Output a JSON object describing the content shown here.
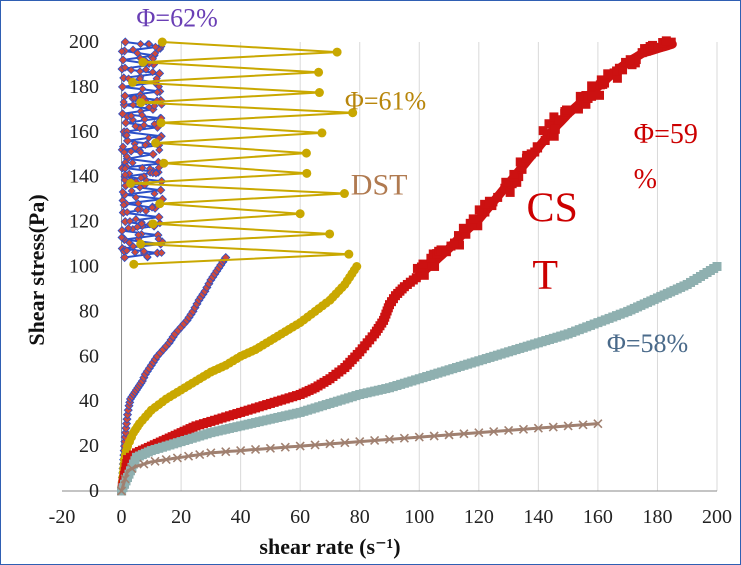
{
  "chart_data": {
    "type": "scatter",
    "xlabel": "shear rate (s⁻¹)",
    "ylabel": "Shear stress(Pa)",
    "xlim": [
      -20,
      200
    ],
    "ylim": [
      0,
      200
    ],
    "x_ticks": [
      -20,
      0,
      20,
      40,
      60,
      80,
      100,
      120,
      140,
      160,
      180,
      200
    ],
    "y_ticks": [
      0,
      20,
      40,
      60,
      80,
      100,
      120,
      140,
      160,
      180,
      200
    ],
    "grid": "vertical",
    "legend": "none",
    "annotations": [
      {
        "text": "Φ=62%",
        "color": "#6a3fb5",
        "x": 5,
        "y": 207
      },
      {
        "text": "Φ=61%",
        "color": "#b8860b",
        "x": 75,
        "y": 170
      },
      {
        "text": "DST",
        "color": "#b07a50",
        "x": 77,
        "y": 132
      },
      {
        "text": "Φ=59",
        "color": "#cc0000",
        "x": 172,
        "y": 155
      },
      {
        "text": "%",
        "color": "#cc0000",
        "x": 172,
        "y": 135
      },
      {
        "text": "CS",
        "color": "#cc0000",
        "x": 136,
        "y": 120
      },
      {
        "text": "T",
        "color": "#cc0000",
        "x": 138,
        "y": 90
      },
      {
        "text": "Φ=58%",
        "color": "#4a6a8a",
        "x": 163,
        "y": 62
      }
    ],
    "series": [
      {
        "color": "#2b50c8",
        "marker_color": "#d04a3a",
        "marker": "diamond",
        "x": [
          0,
          0.5,
          1,
          1.5,
          2,
          2.5,
          3,
          4,
          5,
          6,
          7,
          8,
          10,
          12,
          14,
          16,
          18,
          20,
          22,
          24,
          26,
          28,
          30,
          32,
          34,
          35
        ],
        "y": [
          0,
          10,
          20,
          28,
          34,
          38,
          41,
          43,
          45,
          47,
          49,
          52,
          56,
          60,
          63,
          66,
          70,
          73,
          76,
          80,
          85,
          89,
          94,
          98,
          102,
          104
        ],
        "lower_zigzag": {
          "type": "oscillating",
          "y_start": 104,
          "y_end": 200,
          "steps": 48,
          "x_min": 0,
          "x_max": 14
        }
      },
      {
        "color": "#c9a800",
        "marker": "circle",
        "x": [
          0,
          1,
          2,
          4,
          6,
          8,
          10,
          15,
          20,
          25,
          30,
          35,
          40,
          45,
          50,
          55,
          60,
          65,
          70,
          75,
          79
        ],
        "y": [
          0,
          14,
          20,
          26,
          30,
          33,
          36,
          41,
          45,
          49,
          53,
          56,
          60,
          63,
          67,
          71,
          75,
          80,
          85,
          92,
          100
        ],
        "lower_zigzag": {
          "type": "oscillating",
          "y_start": 101,
          "y_end": 200,
          "steps": 22,
          "x_min": 3,
          "x_max": 78
        }
      },
      {
        "color": "#cc1111",
        "marker": "square",
        "x": [
          0,
          2,
          5,
          10,
          15,
          20,
          25,
          30,
          35,
          40,
          45,
          50,
          55,
          60,
          65,
          70,
          75,
          80,
          85,
          88,
          90,
          92,
          95,
          100,
          105,
          110,
          115,
          120,
          125,
          130,
          135,
          140,
          145,
          150,
          155,
          160,
          165,
          170,
          175,
          180,
          185
        ],
        "y": [
          0,
          14,
          17,
          20,
          23,
          26,
          29,
          31,
          33,
          35,
          37,
          39,
          41,
          43,
          46,
          50,
          55,
          62,
          70,
          76,
          83,
          87,
          91,
          96,
          102,
          108,
          115,
          121,
          129,
          137,
          145,
          153,
          161,
          168,
          174,
          180,
          186,
          191,
          195,
          197,
          199
        ]
      },
      {
        "color": "#8fb0b0",
        "marker": "square",
        "x": [
          0,
          5,
          10,
          20,
          30,
          40,
          50,
          60,
          70,
          80,
          90,
          100,
          110,
          120,
          130,
          140,
          150,
          160,
          170,
          180,
          190,
          200
        ],
        "y": [
          0,
          15,
          18,
          22,
          26,
          29,
          32,
          35,
          39,
          43,
          46,
          50,
          54,
          58,
          62,
          66,
          70,
          75,
          80,
          86,
          92,
          100
        ]
      },
      {
        "color": "#a08070",
        "marker": "x",
        "x": [
          0,
          2,
          5,
          10,
          15,
          20,
          25,
          30,
          40,
          50,
          60,
          70,
          80,
          90,
          100,
          110,
          120,
          130,
          140,
          150,
          160
        ],
        "y": [
          0,
          9,
          11,
          13,
          14,
          15,
          16,
          17,
          18,
          19,
          20,
          21,
          22,
          23,
          24,
          25,
          26,
          27,
          28,
          29,
          30
        ]
      }
    ]
  }
}
